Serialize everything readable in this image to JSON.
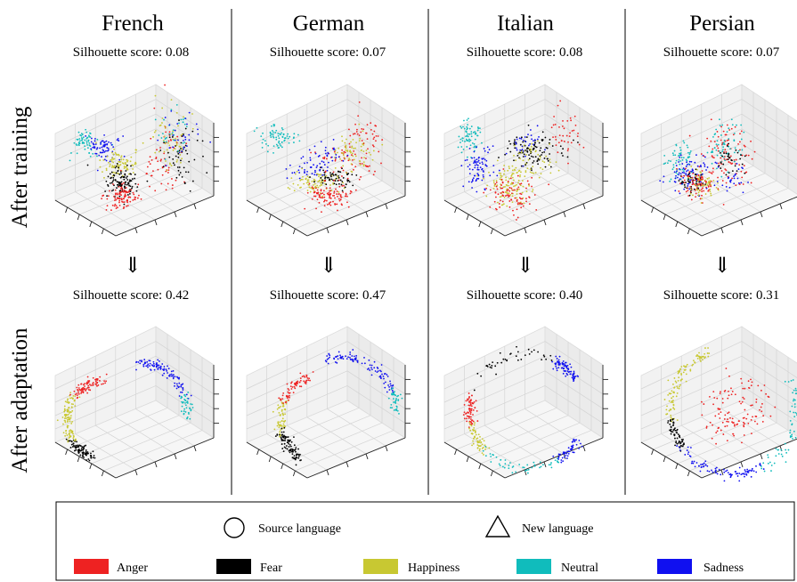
{
  "languages": [
    "French",
    "German",
    "Italian",
    "Persian"
  ],
  "row_labels": [
    "After training",
    "After adaptation"
  ],
  "arrow_symbol": "⇓",
  "chart_data": [
    {
      "type": "scatter",
      "row": "After training",
      "language": "French",
      "silhouette_label": "Silhouette score: 0.08",
      "silhouette_score": 0.08
    },
    {
      "type": "scatter",
      "row": "After training",
      "language": "German",
      "silhouette_label": "Silhouette score: 0.07",
      "silhouette_score": 0.07
    },
    {
      "type": "scatter",
      "row": "After training",
      "language": "Italian",
      "silhouette_label": "Silhouette score: 0.08",
      "silhouette_score": 0.08
    },
    {
      "type": "scatter",
      "row": "After training",
      "language": "Persian",
      "silhouette_label": "Silhouette score: 0.07",
      "silhouette_score": 0.07
    },
    {
      "type": "scatter",
      "row": "After adaptation",
      "language": "French",
      "silhouette_label": "Silhouette score: 0.42",
      "silhouette_score": 0.42
    },
    {
      "type": "scatter",
      "row": "After adaptation",
      "language": "German",
      "silhouette_label": "Silhouette score: 0.47",
      "silhouette_score": 0.47
    },
    {
      "type": "scatter",
      "row": "After adaptation",
      "language": "Italian",
      "silhouette_label": "Silhouette score: 0.40",
      "silhouette_score": 0.4
    },
    {
      "type": "scatter",
      "row": "After adaptation",
      "language": "Persian",
      "silhouette_label": "Silhouette score: 0.31",
      "silhouette_score": 0.31
    }
  ],
  "legend": {
    "markers": [
      {
        "shape": "circle",
        "label": "Source language"
      },
      {
        "shape": "triangle",
        "label": "New language"
      }
    ],
    "classes": [
      {
        "label": "Anger",
        "color": "#ee2222"
      },
      {
        "label": "Fear",
        "color": "#000000"
      },
      {
        "label": "Happiness",
        "color": "#c8c832"
      },
      {
        "label": "Neutral",
        "color": "#10bcbc"
      },
      {
        "label": "Sadness",
        "color": "#1010f0"
      }
    ]
  }
}
